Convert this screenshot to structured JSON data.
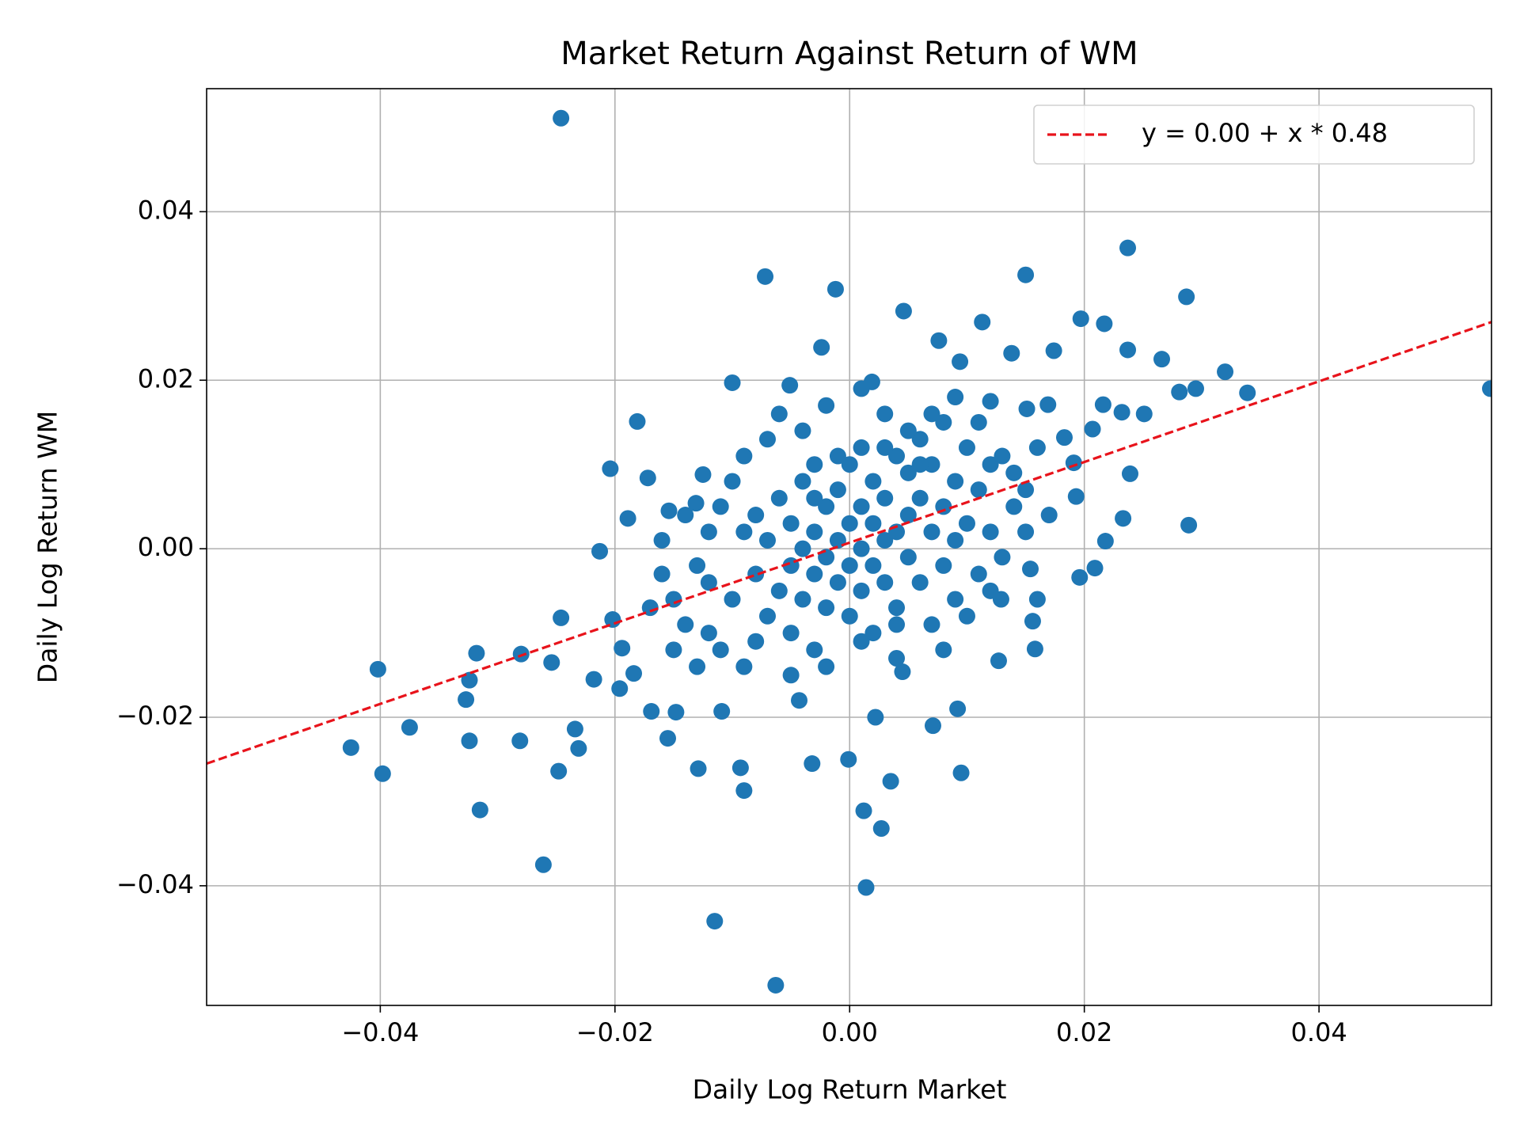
{
  "chart_data": {
    "type": "scatter",
    "title": "Market Return Against Return of WM",
    "x_label": "Daily Log Return Market",
    "y_label": "Daily Log Return WM",
    "xlim": [
      -0.0548,
      0.0547
    ],
    "ylim": [
      -0.0542,
      0.0546
    ],
    "xticks": [
      {
        "value": -0.04,
        "label": "−0.04"
      },
      {
        "value": -0.02,
        "label": "−0.02"
      },
      {
        "value": 0,
        "label": "0.00"
      },
      0.02,
      0.04
    ],
    "yticks": [
      {
        "value": -0.04,
        "label": "−0.04"
      },
      {
        "value": -0.02,
        "label": "−0.02"
      },
      {
        "value": 0,
        "label": "0.00"
      },
      0.02,
      0.04
    ],
    "grid": true,
    "legend": "upper right",
    "series": [
      {
        "name": "y = 0.00 + x * 0.48",
        "type": "line",
        "dashed": true,
        "color": "#e8131b",
        "x": [
          -0.0548,
          0.0547
        ],
        "values": [
          -0.0255,
          0.0269
        ]
      },
      {
        "type": "scatter",
        "color": "#1f77b4",
        "x": [
          -0.0246,
          0.0237,
          -0.0072,
          -0.0012,
          0.015,
          0.0287,
          0.0046,
          0.0113,
          0.0197,
          0.0217,
          -0.0024,
          0.0076,
          0.0138,
          0.0174,
          0.0237,
          0.0266,
          0.032,
          0.0546,
          0.0339,
          0.0295,
          0.0281,
          -0.01,
          -0.0051,
          0.0019,
          0.0094,
          -0.0181,
          0.0232,
          0.0251,
          -0.0204,
          -0.0172,
          0.0239,
          0.0289,
          0.0233,
          0.0196,
          -0.0213,
          -0.0246,
          -0.0402,
          -0.0425,
          -0.0398,
          -0.0375,
          -0.0318,
          -0.0324,
          -0.0315,
          -0.0281,
          -0.028,
          -0.0261,
          -0.0248,
          -0.0231,
          -0.0234,
          -0.0254,
          -0.0327,
          -0.0324,
          -0.0115,
          -0.0063,
          0.0014,
          0.0027,
          0.0012,
          0.0035,
          -0.0001,
          -0.0032,
          -0.0093,
          -0.009,
          -0.0129,
          -0.0155,
          -0.0109,
          0.0022,
          0.0071,
          0.0092,
          0.0095,
          -0.0043,
          0.0045,
          0.0158,
          0.0127,
          0.0156,
          0.0129,
          0.0154,
          0.0209,
          0.0218,
          -0.0169,
          -0.0148,
          -0.0196,
          -0.0218,
          -0.0184,
          -0.0202,
          -0.0194,
          -0.0189,
          -0.0154,
          -0.0131,
          -0.0125,
          0.0193,
          0.0191,
          0.0207,
          0.0183,
          0.0169,
          0.0216,
          0.0151,
          0.012,
          -0.012,
          -0.01,
          -0.009,
          -0.008,
          -0.008,
          -0.007,
          -0.007,
          -0.006,
          -0.006,
          -0.005,
          -0.005,
          -0.005,
          -0.004,
          -0.004,
          -0.004,
          -0.003,
          -0.003,
          -0.003,
          -0.003,
          -0.002,
          -0.002,
          -0.002,
          -0.001,
          -0.001,
          -0.001,
          0,
          0,
          0,
          0,
          0.001,
          0.001,
          0.001,
          0.001,
          0.002,
          0.002,
          0.002,
          0.002,
          0.003,
          0.003,
          0.003,
          0.004,
          0.004,
          0.004,
          0.005,
          0.005,
          0.005,
          0.006,
          0.006,
          0.006,
          0.007,
          0.007,
          0.007,
          0.008,
          0.008,
          0.008,
          0.009,
          0.009,
          0.01,
          0.01,
          0.011,
          0.011,
          0.012,
          0.012,
          0.013,
          0.013,
          0.014,
          -0.014,
          -0.013,
          -0.011,
          -0.011,
          -0.01,
          -0.009,
          -0.009,
          -0.007,
          -0.006,
          -0.004,
          -0.002,
          0.001,
          0.003,
          0.005,
          0.007,
          0.009,
          0.011,
          0.014,
          0.015,
          0.016,
          0.017,
          0.016,
          0.01,
          0.008,
          0.004,
          0.001,
          -0.002,
          -0.005,
          -0.008,
          -0.012,
          -0.015,
          -0.016,
          -0.017,
          -0.015,
          -0.013,
          -0.016,
          -0.014,
          -0.012,
          -0.001,
          0.003,
          0.006,
          -0.003,
          0.004,
          0.009,
          0.012,
          0.015
        ],
        "values": [
          0.0511,
          0.0357,
          0.0323,
          0.0308,
          0.0325,
          0.0299,
          0.0282,
          0.0269,
          0.0273,
          0.0267,
          0.0239,
          0.0247,
          0.0232,
          0.0235,
          0.0236,
          0.0225,
          0.021,
          0.019,
          0.0185,
          0.019,
          0.0186,
          0.0197,
          0.0194,
          0.0198,
          0.0222,
          0.0151,
          0.0162,
          0.016,
          0.0095,
          0.0084,
          0.0089,
          0.0028,
          0.0036,
          -0.0034,
          -0.0003,
          -0.0082,
          -0.0143,
          -0.0236,
          -0.0267,
          -0.0212,
          -0.0124,
          -0.0228,
          -0.031,
          -0.0228,
          -0.0125,
          -0.0375,
          -0.0264,
          -0.0237,
          -0.0214,
          -0.0135,
          -0.0179,
          -0.0156,
          -0.0442,
          -0.0518,
          -0.0402,
          -0.0332,
          -0.0311,
          -0.0276,
          -0.025,
          -0.0255,
          -0.026,
          -0.0287,
          -0.0261,
          -0.0225,
          -0.0193,
          -0.02,
          -0.021,
          -0.019,
          -0.0266,
          -0.018,
          -0.0146,
          -0.0119,
          -0.0133,
          -0.0086,
          -0.006,
          -0.0024,
          -0.0023,
          0.0009,
          -0.0193,
          -0.0194,
          -0.0166,
          -0.0155,
          -0.0148,
          -0.0084,
          -0.0118,
          0.0036,
          0.0045,
          0.0054,
          0.0088,
          0.0062,
          0.0102,
          0.0142,
          0.0132,
          0.0171,
          0.0171,
          0.0166,
          0.0175,
          -0.004,
          -0.006,
          0.002,
          -0.003,
          0.004,
          -0.008,
          0.001,
          -0.005,
          0.006,
          -0.002,
          0.003,
          -0.01,
          0,
          -0.006,
          0.008,
          -0.003,
          0.002,
          -0.012,
          0.01,
          -0.001,
          0.005,
          -0.007,
          0.001,
          -0.004,
          0.007,
          -0.002,
          0.003,
          -0.008,
          0.01,
          0,
          0.005,
          -0.005,
          0.012,
          -0.002,
          0.003,
          0.008,
          -0.01,
          0.001,
          -0.004,
          0.006,
          0.002,
          -0.007,
          0.011,
          0.004,
          -0.001,
          0.009,
          -0.004,
          0.006,
          0.013,
          0.002,
          -0.009,
          0.01,
          0.005,
          -0.002,
          0.015,
          0.008,
          -0.006,
          0.003,
          0.012,
          -0.003,
          0.007,
          0.01,
          0.002,
          -0.001,
          0.011,
          0.005,
          -0.009,
          -0.002,
          0.005,
          -0.012,
          0.008,
          -0.014,
          0.011,
          0.013,
          0.016,
          0.014,
          0.017,
          0.019,
          0.016,
          0.014,
          0.016,
          0.018,
          0.015,
          0.009,
          0.002,
          0.012,
          0.004,
          -0.006,
          -0.008,
          -0.012,
          -0.013,
          -0.011,
          -0.014,
          -0.015,
          -0.011,
          -0.01,
          -0.006,
          -0.003,
          -0.007,
          -0.012,
          -0.014,
          0.001,
          0.004,
          0.002,
          0.011,
          0.012,
          0.01,
          0.006,
          -0.009,
          0.001,
          -0.005,
          0.007
        ]
      }
    ]
  }
}
